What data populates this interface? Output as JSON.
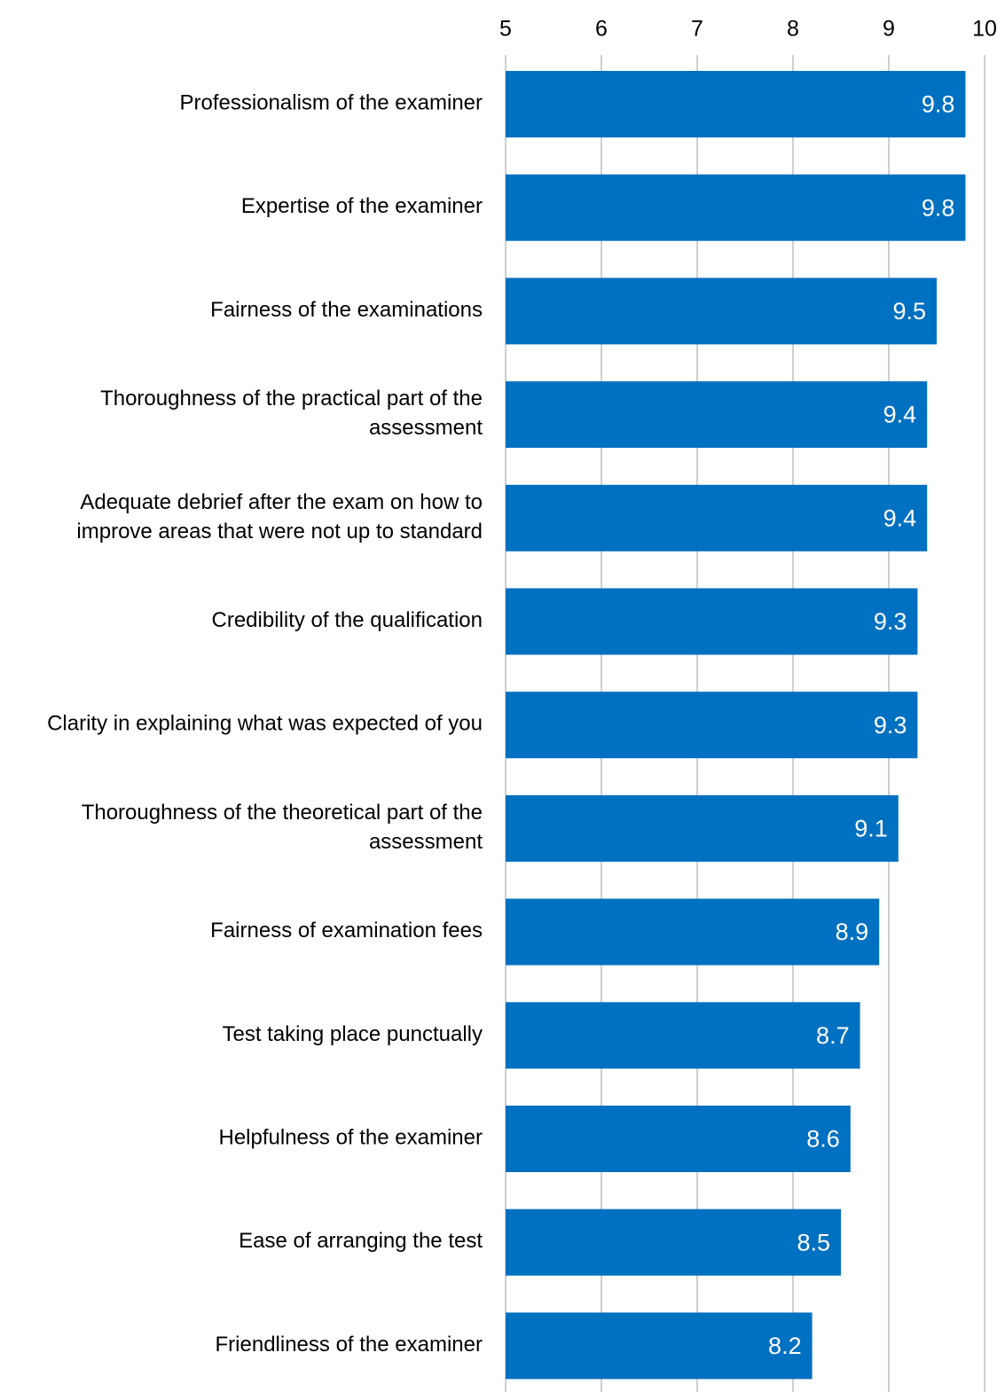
{
  "chart_data": {
    "type": "bar",
    "orientation": "horizontal",
    "title": "",
    "xlabel": "",
    "ylabel": "",
    "xlim": [
      5,
      10
    ],
    "x_ticks": [
      "5",
      "6",
      "7",
      "8",
      "9",
      "10"
    ],
    "x_tick_values": [
      5,
      6,
      7,
      8,
      9,
      10
    ],
    "x_axis_position": "top",
    "grid": true,
    "bar_color": "#0070C0",
    "grid_color": "#BFBFBF",
    "categories": [
      [
        "Professionalism of the examiner"
      ],
      [
        "Expertise of the examiner"
      ],
      [
        "Fairness of the examinations"
      ],
      [
        "Thoroughness of the practical part of the",
        "assessment"
      ],
      [
        "Adequate debrief after the exam on how to",
        "improve areas that were not up to standard"
      ],
      [
        "Credibility of the qualification"
      ],
      [
        "Clarity in explaining what was expected of you"
      ],
      [
        "Thoroughness of the theoretical part of the",
        "assessment"
      ],
      [
        "Fairness of examination fees"
      ],
      [
        "Test taking place punctually"
      ],
      [
        "Helpfulness of the examiner"
      ],
      [
        "Ease of arranging the test"
      ],
      [
        "Friendliness of the examiner"
      ]
    ],
    "values": [
      9.8,
      9.8,
      9.5,
      9.4,
      9.4,
      9.3,
      9.3,
      9.1,
      8.9,
      8.7,
      8.6,
      8.5,
      8.2
    ],
    "value_labels": [
      "9.8",
      "9.8",
      "9.5",
      "9.4",
      "9.4",
      "9.3",
      "9.3",
      "9.1",
      "8.9",
      "8.7",
      "8.6",
      "8.5",
      "8.2"
    ]
  }
}
